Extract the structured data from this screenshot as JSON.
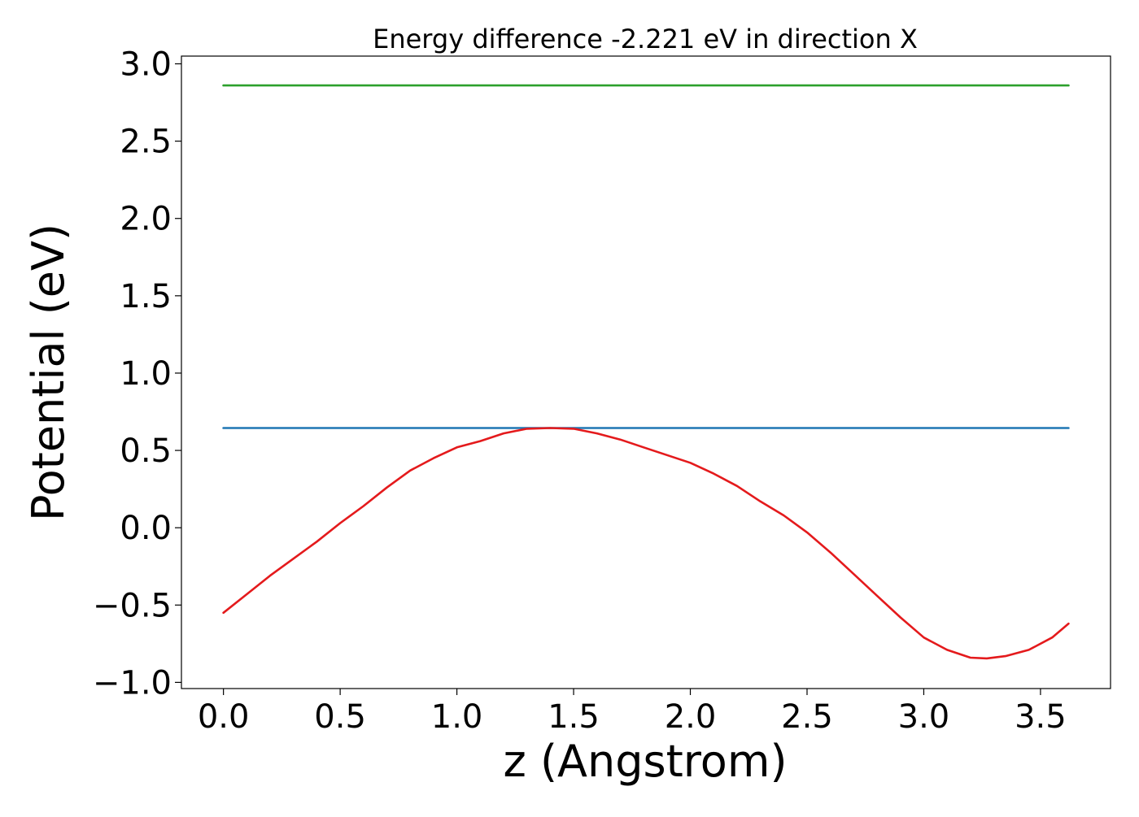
{
  "chart_data": {
    "type": "line",
    "title": "Energy difference -2.221 eV in direction X",
    "xlabel": "z (Angstrom)",
    "ylabel": "Potential (eV)",
    "xlim": [
      -0.18,
      3.8
    ],
    "ylim": [
      -1.04,
      3.05
    ],
    "xticks": [
      0.0,
      0.5,
      1.0,
      1.5,
      2.0,
      2.5,
      3.0,
      3.5
    ],
    "xtick_labels": [
      "0.0",
      "0.5",
      "1.0",
      "1.5",
      "2.0",
      "2.5",
      "3.0",
      "3.5"
    ],
    "yticks": [
      -1.0,
      -0.5,
      0.0,
      0.5,
      1.0,
      1.5,
      2.0,
      2.5,
      3.0
    ],
    "ytick_labels": [
      "−1.0",
      "−0.5",
      "0.0",
      "0.5",
      "1.0",
      "1.5",
      "2.0",
      "2.5",
      "3.0"
    ],
    "grid": false,
    "series": [
      {
        "color": "#2ca02c",
        "x": [
          0.0,
          3.62
        ],
        "y": [
          2.86,
          2.86
        ]
      },
      {
        "color": "#1f77b4",
        "x": [
          0.0,
          3.62
        ],
        "y": [
          0.645,
          0.645
        ]
      },
      {
        "color": "#e41a1c",
        "x": [
          0.0,
          0.1,
          0.2,
          0.3,
          0.4,
          0.5,
          0.6,
          0.7,
          0.8,
          0.9,
          1.0,
          1.1,
          1.2,
          1.3,
          1.4,
          1.5,
          1.6,
          1.7,
          1.8,
          1.9,
          2.0,
          2.1,
          2.2,
          2.3,
          2.4,
          2.5,
          2.6,
          2.7,
          2.8,
          2.9,
          3.0,
          3.1,
          3.2,
          3.27,
          3.35,
          3.45,
          3.55,
          3.62
        ],
        "y": [
          -0.55,
          -0.43,
          -0.31,
          -0.2,
          -0.09,
          0.03,
          0.14,
          0.26,
          0.37,
          0.45,
          0.52,
          0.56,
          0.61,
          0.64,
          0.645,
          0.64,
          0.61,
          0.57,
          0.52,
          0.47,
          0.42,
          0.35,
          0.27,
          0.17,
          0.08,
          -0.03,
          -0.16,
          -0.3,
          -0.44,
          -0.58,
          -0.71,
          -0.79,
          -0.84,
          -0.845,
          -0.83,
          -0.79,
          -0.71,
          -0.62
        ]
      }
    ]
  }
}
